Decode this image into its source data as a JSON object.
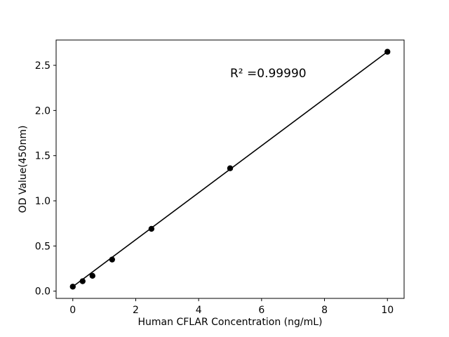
{
  "figure": {
    "background": "#ffffff"
  },
  "chart_data": {
    "type": "scatter",
    "xlabel": "Human CFLAR Concentration (ng/mL)",
    "ylabel": "OD Value(450nm)",
    "x": [
      0,
      0.312,
      0.625,
      1.25,
      2.5,
      5,
      10
    ],
    "y": [
      0.05,
      0.11,
      0.17,
      0.35,
      0.69,
      1.36,
      2.65
    ],
    "trendline": {
      "x": [
        0,
        10
      ],
      "y": [
        0.05,
        2.65
      ]
    },
    "annotation": {
      "text": "R² =0.99990",
      "x": 5.0,
      "y": 2.37
    },
    "xticks": [
      0,
      2,
      4,
      6,
      8,
      10
    ],
    "xtick_labels": [
      "0",
      "2",
      "4",
      "6",
      "8",
      "10"
    ],
    "yticks": [
      0.0,
      0.5,
      1.0,
      1.5,
      2.0,
      2.5
    ],
    "ytick_labels": [
      "0.0",
      "0.5",
      "1.0",
      "1.5",
      "2.0",
      "2.5"
    ],
    "xlim": [
      -0.53,
      10.53
    ],
    "ylim": [
      -0.08,
      2.78
    ],
    "grid": false,
    "marker_color": "#000000",
    "line_color": "#000000",
    "axis_color": "#000000",
    "text_color": "#000000"
  }
}
